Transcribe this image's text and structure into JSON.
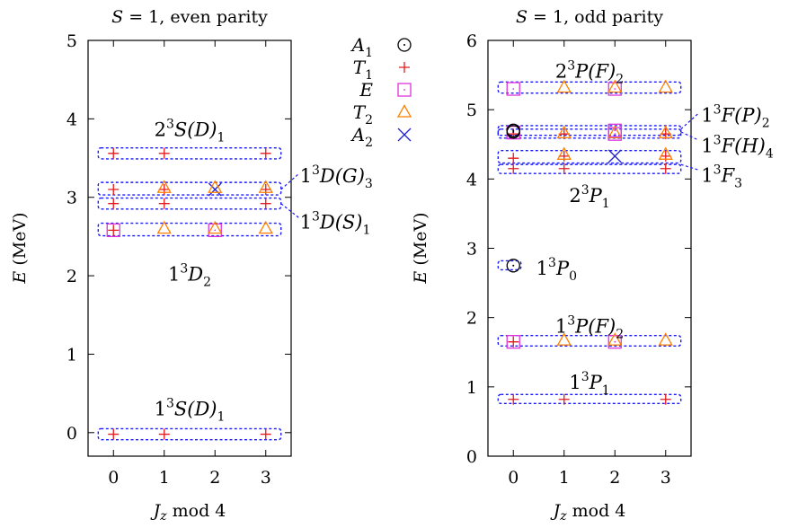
{
  "chart_data": [
    {
      "type": "scatter",
      "title": "S = 1, even parity",
      "title_parts": {
        "sym": "S",
        "rest": " = 1, even parity"
      },
      "xlabel": "J_z mod 4",
      "xlabel_parts": {
        "sym": "J",
        "sub": "z",
        "rest": " mod 4"
      },
      "ylabel": "E (MeV)",
      "ylabel_parts": {
        "sym": "E",
        "rest": " (MeV)"
      },
      "xlim": [
        -0.5,
        3.5
      ],
      "ylim": [
        -0.3,
        5
      ],
      "xticks": [
        "0",
        "1",
        "2",
        "3"
      ],
      "yticks": [
        "0",
        "1",
        "2",
        "3",
        "4",
        "5"
      ],
      "points": [
        {
          "x": 0,
          "y": -0.02,
          "irrep": "T1"
        },
        {
          "x": 1,
          "y": -0.02,
          "irrep": "T1"
        },
        {
          "x": 3,
          "y": -0.02,
          "irrep": "T1"
        },
        {
          "x": 0,
          "y": 2.58,
          "irrep": "E"
        },
        {
          "x": 0,
          "y": 2.58,
          "irrep": "T1"
        },
        {
          "x": 1,
          "y": 2.6,
          "irrep": "T2"
        },
        {
          "x": 2,
          "y": 2.58,
          "irrep": "E"
        },
        {
          "x": 2,
          "y": 2.6,
          "irrep": "T2"
        },
        {
          "x": 3,
          "y": 2.6,
          "irrep": "T2"
        },
        {
          "x": 0,
          "y": 2.92,
          "irrep": "T1"
        },
        {
          "x": 1,
          "y": 2.92,
          "irrep": "T1"
        },
        {
          "x": 3,
          "y": 2.92,
          "irrep": "T1"
        },
        {
          "x": 0,
          "y": 3.1,
          "irrep": "T1"
        },
        {
          "x": 1,
          "y": 3.1,
          "irrep": "T1"
        },
        {
          "x": 1,
          "y": 3.12,
          "irrep": "T2"
        },
        {
          "x": 2,
          "y": 3.1,
          "irrep": "A2"
        },
        {
          "x": 2,
          "y": 3.12,
          "irrep": "T2"
        },
        {
          "x": 3,
          "y": 3.1,
          "irrep": "T1"
        },
        {
          "x": 3,
          "y": 3.12,
          "irrep": "T2"
        },
        {
          "x": 0,
          "y": 3.56,
          "irrep": "T1"
        },
        {
          "x": 1,
          "y": 3.56,
          "irrep": "T1"
        },
        {
          "x": 3,
          "y": 3.56,
          "irrep": "T1"
        }
      ],
      "groups": [
        {
          "x0": -0.3,
          "x1": 3.3,
          "y0": -0.09,
          "y1": 0.05
        },
        {
          "x0": -0.3,
          "x1": 3.3,
          "y0": 2.51,
          "y1": 2.67
        },
        {
          "x0": -0.3,
          "x1": 3.3,
          "y0": 2.85,
          "y1": 2.99
        },
        {
          "x0": -0.3,
          "x1": 3.3,
          "y0": 3.03,
          "y1": 3.19
        },
        {
          "x0": -0.3,
          "x1": 3.3,
          "y0": 3.49,
          "y1": 3.63
        }
      ],
      "labels": [
        {
          "base": "1",
          "sup": "3",
          "core": "S(D)",
          "sub": "1",
          "x": 1.5,
          "y": 0.3,
          "anchor": "middle"
        },
        {
          "base": "1",
          "sup": "3",
          "core": "D",
          "sub": "2",
          "x": 1.5,
          "y": 2.02,
          "anchor": "middle"
        },
        {
          "base": "1",
          "sup": "3",
          "core": "D(S)",
          "sub": "1",
          "x": 3.67,
          "y": 2.68,
          "anchor": "start",
          "lead": [
            3.3,
            2.92,
            3.65,
            2.74
          ]
        },
        {
          "base": "1",
          "sup": "3",
          "core": "D(G)",
          "sub": "3",
          "x": 3.67,
          "y": 3.27,
          "anchor": "start",
          "lead": [
            3.3,
            3.1,
            3.65,
            3.3
          ]
        },
        {
          "base": "2",
          "sup": "3",
          "core": "S(D)",
          "sub": "1",
          "x": 1.5,
          "y": 3.86,
          "anchor": "middle"
        }
      ]
    },
    {
      "type": "scatter",
      "title": "S = 1, odd parity",
      "title_parts": {
        "sym": "S",
        "rest": " = 1, odd parity"
      },
      "xlabel": "J_z mod 4",
      "xlabel_parts": {
        "sym": "J",
        "sub": "z",
        "rest": " mod 4"
      },
      "ylabel": "E (MeV)",
      "ylabel_parts": {
        "sym": "E",
        "rest": " (MeV)"
      },
      "xlim": [
        -0.5,
        3.5
      ],
      "ylim": [
        0,
        6
      ],
      "xticks": [
        "0",
        "1",
        "2",
        "3"
      ],
      "yticks": [
        "0",
        "1",
        "2",
        "3",
        "4",
        "5",
        "6"
      ],
      "points": [
        {
          "x": 0,
          "y": 0.82,
          "irrep": "T1"
        },
        {
          "x": 1,
          "y": 0.82,
          "irrep": "T1"
        },
        {
          "x": 3,
          "y": 0.82,
          "irrep": "T1"
        },
        {
          "x": 0,
          "y": 1.65,
          "irrep": "E"
        },
        {
          "x": 0,
          "y": 1.65,
          "irrep": "T1"
        },
        {
          "x": 1,
          "y": 1.67,
          "irrep": "T2"
        },
        {
          "x": 2,
          "y": 1.65,
          "irrep": "E"
        },
        {
          "x": 2,
          "y": 1.67,
          "irrep": "T2"
        },
        {
          "x": 3,
          "y": 1.67,
          "irrep": "T2"
        },
        {
          "x": 0,
          "y": 2.75,
          "irrep": "A1"
        },
        {
          "x": 0,
          "y": 4.15,
          "irrep": "T1"
        },
        {
          "x": 1,
          "y": 4.15,
          "irrep": "T1"
        },
        {
          "x": 3,
          "y": 4.15,
          "irrep": "T1"
        },
        {
          "x": 0,
          "y": 4.3,
          "irrep": "T1"
        },
        {
          "x": 1,
          "y": 4.33,
          "irrep": "T1"
        },
        {
          "x": 1,
          "y": 4.35,
          "irrep": "T2"
        },
        {
          "x": 2,
          "y": 4.33,
          "irrep": "A2"
        },
        {
          "x": 3,
          "y": 4.33,
          "irrep": "T1"
        },
        {
          "x": 3,
          "y": 4.35,
          "irrep": "T2"
        },
        {
          "x": 0,
          "y": 4.65,
          "irrep": "T1"
        },
        {
          "x": 0,
          "y": 4.67,
          "irrep": "E"
        },
        {
          "x": 0,
          "y": 4.68,
          "irrep": "A1"
        },
        {
          "x": 0,
          "y": 4.7,
          "irrep": "A1"
        },
        {
          "x": 1,
          "y": 4.65,
          "irrep": "T1"
        },
        {
          "x": 1,
          "y": 4.66,
          "irrep": "T2"
        },
        {
          "x": 2,
          "y": 4.65,
          "irrep": "E"
        },
        {
          "x": 2,
          "y": 4.66,
          "irrep": "T2"
        },
        {
          "x": 2,
          "y": 4.7,
          "irrep": "E"
        },
        {
          "x": 3,
          "y": 4.65,
          "irrep": "T1"
        },
        {
          "x": 3,
          "y": 4.66,
          "irrep": "T2"
        },
        {
          "x": 0,
          "y": 5.3,
          "irrep": "E"
        },
        {
          "x": 1,
          "y": 5.32,
          "irrep": "T2"
        },
        {
          "x": 2,
          "y": 5.3,
          "irrep": "E"
        },
        {
          "x": 2,
          "y": 5.32,
          "irrep": "T2"
        },
        {
          "x": 3,
          "y": 5.32,
          "irrep": "T2"
        }
      ],
      "groups": [
        {
          "x0": -0.3,
          "x1": 3.3,
          "y0": 0.76,
          "y1": 0.89
        },
        {
          "x0": -0.3,
          "x1": 3.3,
          "y0": 1.59,
          "y1": 1.74
        },
        {
          "x0": -0.3,
          "x1": 0.15,
          "y0": 2.69,
          "y1": 2.82
        },
        {
          "x0": -0.3,
          "x1": 3.3,
          "y0": 4.08,
          "y1": 4.21
        },
        {
          "x0": -0.3,
          "x1": 3.3,
          "y0": 4.23,
          "y1": 4.41
        },
        {
          "x0": -0.3,
          "x1": 3.3,
          "y0": 4.59,
          "y1": 4.72
        },
        {
          "x0": -0.3,
          "x1": 3.3,
          "y0": 4.63,
          "y1": 4.77
        },
        {
          "x0": -0.3,
          "x1": 3.3,
          "y0": 5.24,
          "y1": 5.4
        }
      ],
      "labels": [
        {
          "base": "1",
          "sup": "3",
          "core": "P",
          "sub": "1",
          "x": 1.5,
          "y": 1.06,
          "anchor": "middle"
        },
        {
          "base": "1",
          "sup": "3",
          "core": "P(F)",
          "sub": "2",
          "x": 1.5,
          "y": 1.87,
          "anchor": "middle"
        },
        {
          "base": "1",
          "sup": "3",
          "core": "P",
          "sub": "0",
          "x": 0.45,
          "y": 2.71,
          "anchor": "start"
        },
        {
          "base": "2",
          "sup": "3",
          "core": "P",
          "sub": "1",
          "x": 1.5,
          "y": 3.76,
          "anchor": "middle"
        },
        {
          "base": "1",
          "sup": "3",
          "core": "F",
          "sub": "3",
          "x": 3.7,
          "y": 4.05,
          "anchor": "start",
          "lead": [
            3.3,
            4.21,
            3.65,
            4.13
          ]
        },
        {
          "base": "1",
          "sup": "3",
          "core": "F(H)",
          "sub": "4",
          "x": 3.7,
          "y": 4.48,
          "anchor": "start",
          "lead": [
            3.3,
            4.68,
            3.65,
            4.56
          ]
        },
        {
          "base": "1",
          "sup": "3",
          "core": "F(P)",
          "sub": "2",
          "x": 3.7,
          "y": 4.92,
          "anchor": "start",
          "lead": [
            3.3,
            4.72,
            3.65,
            4.95
          ]
        },
        {
          "base": "2",
          "sup": "3",
          "core": "P(F)",
          "sub": "2",
          "x": 1.5,
          "y": 5.55,
          "anchor": "middle"
        }
      ]
    }
  ],
  "legend": {
    "placement": "center-between-panels",
    "entries": [
      {
        "irrep": "A1",
        "sym": "A",
        "sub": "1",
        "color": "#000000"
      },
      {
        "irrep": "T1",
        "sym": "T",
        "sub": "1",
        "color": "#e41a1c"
      },
      {
        "irrep": "E",
        "sym": "E",
        "sub": "",
        "color": "#dd33dd"
      },
      {
        "irrep": "T2",
        "sym": "T",
        "sub": "2",
        "color": "#ff7f00"
      },
      {
        "irrep": "A2",
        "sym": "A",
        "sub": "2",
        "color": "#2222cc"
      }
    ]
  }
}
